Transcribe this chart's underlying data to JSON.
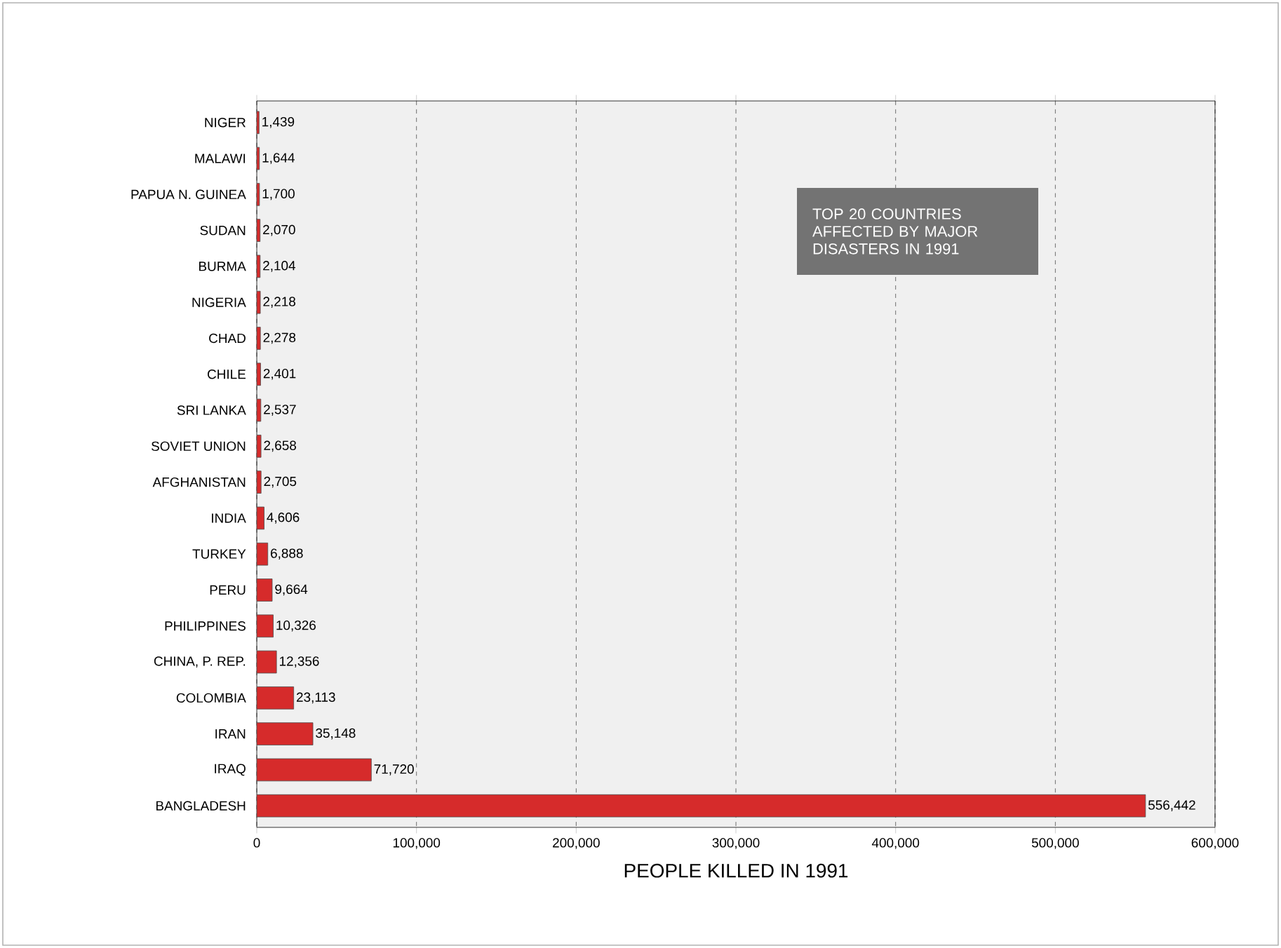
{
  "chart_data": {
    "type": "bar",
    "orientation": "horizontal",
    "title": "TOP 20 COUNTRIES AFFECTED BY MAJOR DISASTERS IN 1991",
    "xlabel": "PEOPLE KILLED IN 1991",
    "categories": [
      "NIGER",
      "MALAWI",
      "PAPUA N. GUINEA",
      "SUDAN",
      "BURMA",
      "NIGERIA",
      "CHAD",
      "CHILE",
      "SRI LANKA",
      "SOVIET UNION",
      "AFGHANISTAN",
      "INDIA",
      "TURKEY",
      "PERU",
      "PHILIPPINES",
      "CHINA, P. REP.",
      "COLOMBIA",
      "IRAN",
      "IRAQ",
      "BANGLADESH"
    ],
    "values": [
      1439,
      1644,
      1700,
      2070,
      2104,
      2218,
      2278,
      2401,
      2537,
      2658,
      2705,
      4606,
      6888,
      9664,
      10326,
      12356,
      23113,
      35148,
      71720,
      556442
    ],
    "value_labels": [
      "1,439",
      "1,644",
      "1,700",
      "2,070",
      "2,104",
      "2,218",
      "2,278",
      "2,401",
      "2,537",
      "2,658",
      "2,705",
      "4,606",
      "6,888",
      "9,664",
      "10,326",
      "12,356",
      "23,113",
      "35,148",
      "71,720",
      "556,442"
    ],
    "color": "#d62b2b",
    "xlim": [
      0,
      600000
    ],
    "xticks": [
      0,
      {
        "value": 100000,
        "label": "100,000"
      },
      {
        "value": 200000,
        "label": "200,000"
      },
      {
        "value": 300000,
        "label": "300,000"
      },
      {
        "value": 400000,
        "label": "400,000"
      },
      {
        "value": 500000,
        "label": "500,000"
      },
      {
        "value": 600000,
        "label": "600,000"
      }
    ],
    "grid": "x"
  }
}
